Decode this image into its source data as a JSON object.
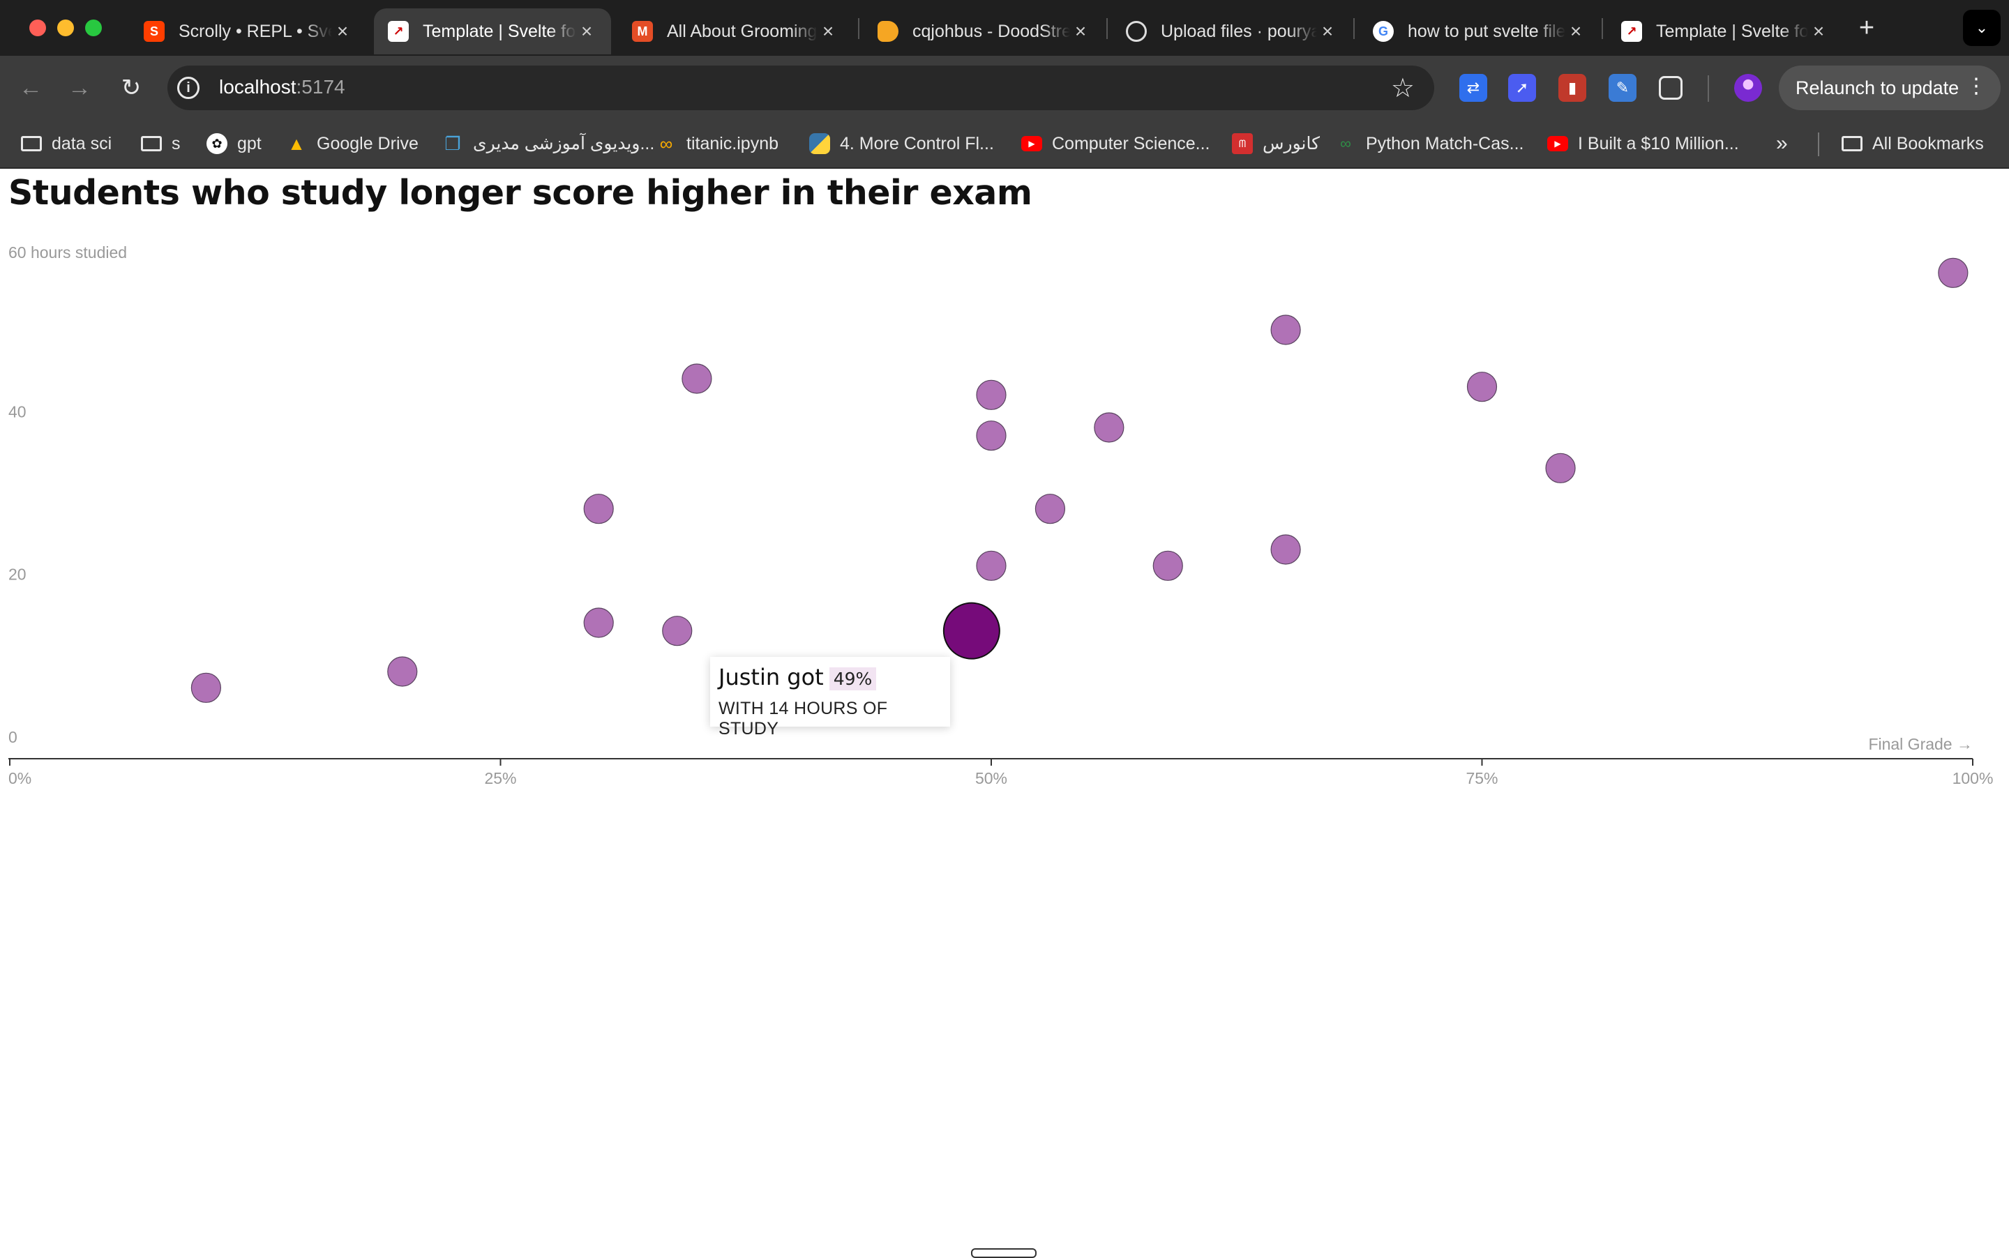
{
  "browser": {
    "tabs": [
      {
        "title": "Scrolly • REPL • Svelte",
        "icon": "svelte-icon",
        "color": "#ff3e00",
        "active": false
      },
      {
        "title": "Template | Svelte for data visualization",
        "icon": "chart-emoji-icon",
        "color": "#ffffff",
        "active": true
      },
      {
        "title": "All About Grooming",
        "icon": "m-logo-icon",
        "color": "#e44d26",
        "active": false
      },
      {
        "title": "cqjohbus - DoodStream",
        "icon": "doodstream-icon",
        "color": "#f5a623",
        "active": false
      },
      {
        "title": "Upload files · pourya",
        "icon": "github-icon",
        "color": "#ffffff",
        "active": false
      },
      {
        "title": "how to put svelte files",
        "icon": "google-icon",
        "color": "#4285f4",
        "active": false
      },
      {
        "title": "Template | Svelte for data visualization",
        "icon": "chart-emoji-icon",
        "color": "#ffffff",
        "active": false
      }
    ],
    "address": {
      "host": "localhost",
      "port": ":5174"
    },
    "relaunch_label": "Relaunch to update",
    "bookmarks": [
      {
        "label": "data sci",
        "icon": "folder-icon"
      },
      {
        "label": "s",
        "icon": "folder-icon"
      },
      {
        "label": "gpt",
        "icon": "openai-icon"
      },
      {
        "label": "Google Drive",
        "icon": "google-drive-icon"
      },
      {
        "label": "ویدیوی آموزشی مدیری...",
        "icon": "book-icon"
      },
      {
        "label": "titanic.ipynb",
        "icon": "colab-icon"
      },
      {
        "label": "4. More Control Fl...",
        "icon": "python-icon"
      },
      {
        "label": "Computer Science...",
        "icon": "youtube-icon"
      },
      {
        "label": "کانورس",
        "icon": "converse-icon"
      },
      {
        "label": "Python Match-Cas...",
        "icon": "geeksforgeeks-icon"
      },
      {
        "label": "I Built a $10 Million...",
        "icon": "youtube-icon"
      }
    ],
    "all_bookmarks_label": "All Bookmarks"
  },
  "page": {
    "title": "Students who study longer score higher in their exam"
  },
  "tooltip": {
    "name_text": "Justin got",
    "grade_text": "49%",
    "hours_text": "WITH 14 HOURS OF STUDY"
  },
  "chart_data": {
    "type": "scatter",
    "title": "Students who study longer score higher in their exam",
    "xlabel": "Final Grade →",
    "ylabel": "hours studied",
    "xlim": [
      0,
      100
    ],
    "ylim": [
      0,
      60
    ],
    "x_ticks": [
      "0%",
      "25%",
      "50%",
      "75%",
      "100%"
    ],
    "y_ticks": [
      "0",
      "20",
      "40",
      "60"
    ],
    "y_top_label": "60 hours studied",
    "point_color": "#b072b6",
    "highlight_color": "#760b7a",
    "highlight_index": 13,
    "points": [
      {
        "x": 10,
        "y": 7
      },
      {
        "x": 20,
        "y": 9
      },
      {
        "x": 30,
        "y": 29
      },
      {
        "x": 30,
        "y": 15
      },
      {
        "x": 34,
        "y": 14
      },
      {
        "x": 35,
        "y": 45
      },
      {
        "x": 50,
        "y": 43
      },
      {
        "x": 50,
        "y": 38
      },
      {
        "x": 50,
        "y": 22
      },
      {
        "x": 53,
        "y": 29
      },
      {
        "x": 56,
        "y": 39
      },
      {
        "x": 59,
        "y": 22
      },
      {
        "x": 65,
        "y": 51
      },
      {
        "x": 49,
        "y": 14
      },
      {
        "x": 65,
        "y": 24
      },
      {
        "x": 75,
        "y": 44
      },
      {
        "x": 79,
        "y": 34
      },
      {
        "x": 99,
        "y": 58
      }
    ]
  }
}
